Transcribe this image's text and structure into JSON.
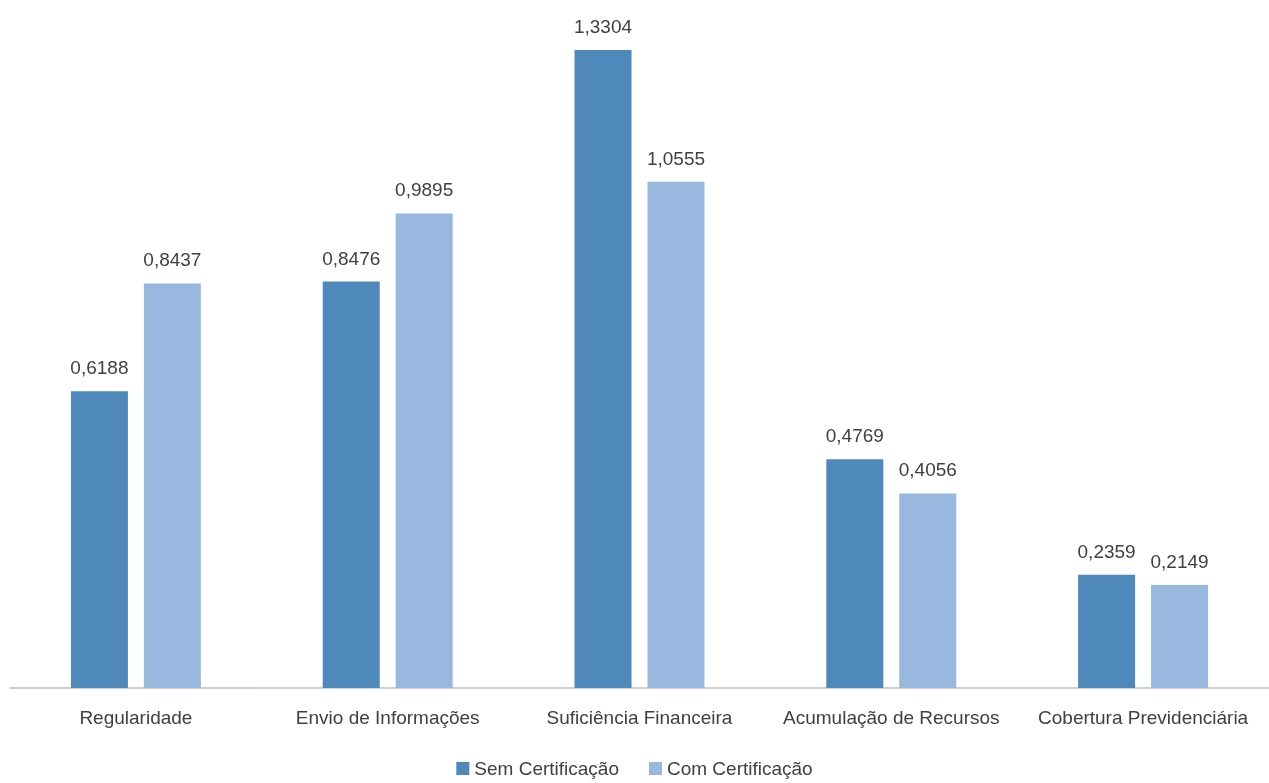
{
  "chart_data": {
    "type": "bar",
    "categories": [
      "Regularidade",
      "Envio de Informações",
      "Suficiência Financeira",
      "Acumulação de Recursos",
      "Cobertura Previdenciária"
    ],
    "series": [
      {
        "name": "Sem Certificação",
        "color": "#4f88bb",
        "values": [
          0.6188,
          0.8476,
          1.3304,
          0.4769,
          0.2359
        ],
        "value_labels": [
          "0,6188",
          "0,8476",
          "1,3304",
          "0,4769",
          "0,2359"
        ]
      },
      {
        "name": "Com Certificação",
        "color": "#98b8df",
        "values": [
          0.8437,
          0.9895,
          1.0555,
          0.4056,
          0.2149
        ],
        "value_labels": [
          "0,8437",
          "0,9895",
          "1,0555",
          "0,4056",
          "0,2149"
        ]
      }
    ],
    "legend": "bottom",
    "grid": false
  }
}
